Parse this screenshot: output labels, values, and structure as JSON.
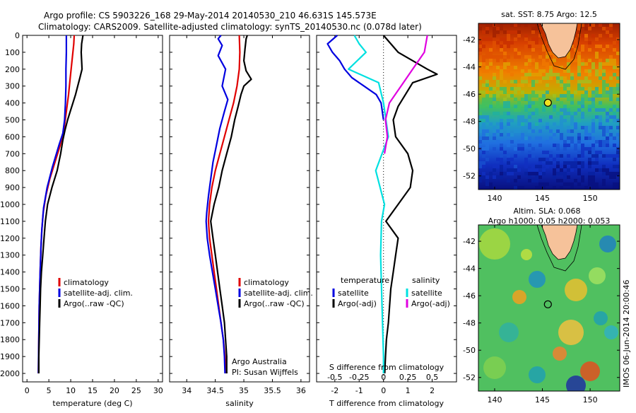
{
  "header": {
    "line1": "Argo profile: CS 5903226_168 29-May-2014 20140530_210 46.631S 145.573E",
    "line2": "Climatology: CARS2009. Satellite-adjusted climatology: synTS_20140530.nc (0.078d later)"
  },
  "colors": {
    "climatology": "#e00000",
    "satellite": "#0000e0",
    "argo": "#000000",
    "cyan": "#00e0e0",
    "magenta": "#e000e0"
  },
  "chart_data": [
    {
      "type": "line",
      "id": "temperature",
      "xlabel": "temperature (deg C)",
      "xlim": [
        -1,
        31
      ],
      "xticks": [
        0,
        5,
        10,
        15,
        20,
        25,
        30
      ],
      "ylim": [
        0,
        2050
      ],
      "yticks": [
        0,
        100,
        200,
        300,
        400,
        500,
        600,
        700,
        800,
        900,
        1000,
        1100,
        1200,
        1300,
        1400,
        1500,
        1600,
        1700,
        1800,
        1900,
        2000
      ],
      "y_reversed": true,
      "legend": [
        "climatology",
        "satellite-adj. clim.",
        "Argo(..raw -QC)"
      ],
      "legend_placement": "lower-right",
      "series": [
        {
          "name": "climatology",
          "color": "#e00000",
          "points": [
            [
              10.8,
              0
            ],
            [
              10.7,
              50
            ],
            [
              10.3,
              150
            ],
            [
              9.9,
              250
            ],
            [
              9.5,
              350
            ],
            [
              9,
              450
            ],
            [
              8.5,
              550
            ],
            [
              7.6,
              650
            ],
            [
              6.4,
              750
            ],
            [
              5.2,
              850
            ],
            [
              4.3,
              950
            ],
            [
              3.7,
              1050
            ],
            [
              3.4,
              1150
            ],
            [
              3.2,
              1250
            ],
            [
              3,
              1400
            ],
            [
              2.8,
              1600
            ],
            [
              2.7,
              1800
            ],
            [
              2.6,
              2000
            ]
          ]
        },
        {
          "name": "satellite-adj. clim.",
          "color": "#0000e0",
          "points": [
            [
              9,
              0
            ],
            [
              9,
              100
            ],
            [
              8.9,
              200
            ],
            [
              8.9,
              300
            ],
            [
              8.8,
              400
            ],
            [
              8.6,
              500
            ],
            [
              8.2,
              580
            ],
            [
              7.3,
              650
            ],
            [
              5.8,
              780
            ],
            [
              4.6,
              900
            ],
            [
              3.8,
              1020
            ],
            [
              3.4,
              1150
            ],
            [
              3.2,
              1250
            ],
            [
              3,
              1400
            ],
            [
              2.8,
              1600
            ],
            [
              2.7,
              1800
            ],
            [
              2.6,
              2000
            ]
          ]
        },
        {
          "name": "Argo(..raw -QC)",
          "color": "#000000",
          "points": [
            [
              12.8,
              0
            ],
            [
              12.5,
              50
            ],
            [
              12.4,
              100
            ],
            [
              12.5,
              150
            ],
            [
              12.6,
              200
            ],
            [
              12.1,
              250
            ],
            [
              11.6,
              300
            ],
            [
              11.1,
              350
            ],
            [
              10.5,
              400
            ],
            [
              9.9,
              450
            ],
            [
              9.3,
              500
            ],
            [
              8.7,
              560
            ],
            [
              8.2,
              620
            ],
            [
              7.7,
              700
            ],
            [
              6.9,
              800
            ],
            [
              5.7,
              900
            ],
            [
              4.7,
              1000
            ],
            [
              4.2,
              1100
            ],
            [
              3.9,
              1200
            ],
            [
              3.6,
              1300
            ],
            [
              3.3,
              1400
            ],
            [
              3.1,
              1500
            ],
            [
              3,
              1600
            ],
            [
              2.9,
              1700
            ],
            [
              2.8,
              1800
            ],
            [
              2.7,
              1900
            ],
            [
              2.7,
              2000
            ]
          ]
        }
      ]
    },
    {
      "type": "line",
      "id": "salinity",
      "xlabel": "salinity",
      "xlim": [
        33.7,
        36.15
      ],
      "xticks": [
        34,
        34.5,
        35,
        35.5,
        36
      ],
      "ylim": [
        0,
        2050
      ],
      "y_reversed": true,
      "legend": [
        "climatology",
        "satellite-adj. clim.",
        "Argo(..raw -QC)"
      ],
      "legend_placement": "lower-right",
      "annotation": [
        "Argo Australia",
        "PI: Susan Wijffels"
      ],
      "series": [
        {
          "name": "climatology",
          "color": "#e00000",
          "points": [
            [
              34.92,
              0
            ],
            [
              34.93,
              100
            ],
            [
              34.92,
              200
            ],
            [
              34.88,
              300
            ],
            [
              34.82,
              400
            ],
            [
              34.74,
              500
            ],
            [
              34.66,
              600
            ],
            [
              34.58,
              700
            ],
            [
              34.5,
              800
            ],
            [
              34.44,
              900
            ],
            [
              34.4,
              1000
            ],
            [
              34.38,
              1100
            ],
            [
              34.4,
              1200
            ],
            [
              34.44,
              1300
            ],
            [
              34.48,
              1400
            ],
            [
              34.52,
              1500
            ],
            [
              34.56,
              1600
            ],
            [
              34.6,
              1700
            ],
            [
              34.64,
              1800
            ],
            [
              34.67,
              1900
            ],
            [
              34.7,
              2000
            ]
          ]
        },
        {
          "name": "satellite-adj. clim.",
          "color": "#0000e0",
          "points": [
            [
              34.6,
              0
            ],
            [
              34.55,
              20
            ],
            [
              34.62,
              60
            ],
            [
              34.55,
              120
            ],
            [
              34.68,
              200
            ],
            [
              34.62,
              300
            ],
            [
              34.72,
              380
            ],
            [
              34.66,
              450
            ],
            [
              34.58,
              550
            ],
            [
              34.52,
              650
            ],
            [
              34.46,
              750
            ],
            [
              34.42,
              850
            ],
            [
              34.38,
              950
            ],
            [
              34.35,
              1050
            ],
            [
              34.34,
              1100
            ],
            [
              34.36,
              1200
            ],
            [
              34.4,
              1300
            ],
            [
              34.45,
              1400
            ],
            [
              34.5,
              1500
            ],
            [
              34.55,
              1600
            ],
            [
              34.6,
              1700
            ],
            [
              34.64,
              1800
            ],
            [
              34.66,
              1900
            ],
            [
              34.67,
              2000
            ]
          ]
        },
        {
          "name": "Argo(..raw -QC)",
          "color": "#000000",
          "points": [
            [
              35.06,
              0
            ],
            [
              35.04,
              20
            ],
            [
              35.02,
              80
            ],
            [
              35,
              150
            ],
            [
              35.04,
              210
            ],
            [
              35.13,
              260
            ],
            [
              35,
              300
            ],
            [
              34.95,
              350
            ],
            [
              34.9,
              420
            ],
            [
              34.84,
              500
            ],
            [
              34.78,
              600
            ],
            [
              34.7,
              700
            ],
            [
              34.62,
              800
            ],
            [
              34.56,
              900
            ],
            [
              34.48,
              1000
            ],
            [
              34.42,
              1100
            ],
            [
              34.46,
              1200
            ],
            [
              34.5,
              1300
            ],
            [
              34.54,
              1400
            ],
            [
              34.58,
              1500
            ],
            [
              34.62,
              1600
            ],
            [
              34.66,
              1700
            ],
            [
              34.68,
              1800
            ],
            [
              34.7,
              1900
            ],
            [
              34.7,
              2000
            ]
          ]
        }
      ]
    },
    {
      "type": "line",
      "id": "difference",
      "xlabel": "T difference from climatology",
      "xlabel_top": "S difference from climatology",
      "xlim": [
        -2.75,
        3
      ],
      "xticks": [
        -2,
        -1,
        0,
        1,
        2
      ],
      "xticks_s": [
        "-0.5",
        "-0.25",
        "0",
        "0.25",
        "0.5"
      ],
      "ylim": [
        0,
        2050
      ],
      "y_reversed": true,
      "legend_left_title": "temperature",
      "legend_right_title": "salinity",
      "legend_left": [
        "satellite",
        "Argo(-adj)"
      ],
      "legend_right": [
        "satellite",
        "Argo(-adj)"
      ],
      "series": [
        {
          "name": "temperature satellite",
          "color": "#0000e0",
          "points": [
            [
              -1.9,
              0
            ],
            [
              -2.3,
              50
            ],
            [
              -2.1,
              100
            ],
            [
              -1.8,
              150
            ],
            [
              -1.6,
              200
            ],
            [
              -1.3,
              250
            ],
            [
              -0.8,
              300
            ],
            [
              -0.3,
              350
            ],
            [
              -0.1,
              400
            ],
            [
              0,
              500
            ]
          ]
        },
        {
          "name": "temperature Argo(-adj)",
          "color": "#000000",
          "points": [
            [
              0,
              0
            ],
            [
              0.6,
              100
            ],
            [
              1.8,
              200
            ],
            [
              2.2,
              230
            ],
            [
              1.2,
              280
            ],
            [
              0.9,
              350
            ],
            [
              0.6,
              420
            ],
            [
              0.4,
              500
            ],
            [
              0.5,
              600
            ],
            [
              1,
              700
            ],
            [
              1.2,
              800
            ],
            [
              1.1,
              900
            ],
            [
              0.6,
              1000
            ],
            [
              0.1,
              1100
            ],
            [
              0.6,
              1200
            ],
            [
              0.5,
              1300
            ],
            [
              0.4,
              1400
            ],
            [
              0.3,
              1500
            ],
            [
              0.25,
              1600
            ],
            [
              0.2,
              1700
            ],
            [
              0.12,
              1800
            ],
            [
              0.08,
              1900
            ],
            [
              0.05,
              2000
            ]
          ]
        },
        {
          "name": "salinity satellite",
          "color": "#00e0e0",
          "points": [
            [
              -0.3,
              0
            ],
            [
              -0.25,
              50
            ],
            [
              -0.18,
              100
            ],
            [
              -0.36,
              200
            ],
            [
              -0.05,
              280
            ],
            [
              0,
              400
            ],
            [
              0.05,
              600
            ],
            [
              -0.08,
              800
            ],
            [
              0.01,
              1000
            ],
            [
              -0.02,
              1100
            ],
            [
              -0.03,
              1300
            ],
            [
              -0.02,
              1500
            ],
            [
              -0.01,
              1700
            ],
            [
              0,
              1900
            ],
            [
              0,
              2000
            ]
          ]
        },
        {
          "name": "salinity Argo(-adj)",
          "color": "#e000e0",
          "points": [
            [
              0.45,
              0
            ],
            [
              0.42,
              100
            ],
            [
              0.3,
              200
            ],
            [
              0.18,
              300
            ],
            [
              0.06,
              400
            ],
            [
              0.02,
              500
            ],
            [
              0.04,
              600
            ],
            [
              0.01,
              700
            ]
          ]
        }
      ]
    },
    {
      "type": "heatmap",
      "id": "sst-map",
      "title": "sat. SST: 8.75 Argo: 12.5",
      "xticks": [
        140,
        145,
        150
      ],
      "yticks": [
        -42,
        -44,
        -46,
        -48,
        -50,
        -52
      ],
      "xlim": [
        138.3,
        153.1
      ],
      "ylim": [
        -53,
        -40.8
      ],
      "argo_position": [
        145.573,
        -46.631
      ]
    },
    {
      "type": "heatmap",
      "id": "sla-map",
      "title": "Altim. SLA: 0.068",
      "subtitle": "Argo h1000: 0.05 h2000: 0.053",
      "xticks": [
        140,
        145,
        150
      ],
      "yticks": [
        -42,
        -44,
        -46,
        -48,
        -50,
        -52
      ],
      "xlim": [
        138.3,
        153.1
      ],
      "ylim": [
        -53,
        -40.8
      ],
      "argo_position": [
        145.573,
        -46.631
      ]
    }
  ],
  "footer_stamp": "IMOS 06-Jun-2014 20:00:46"
}
